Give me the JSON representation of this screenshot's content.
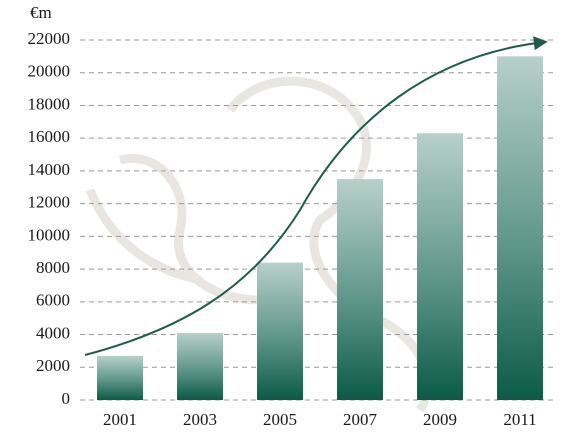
{
  "chart_data": {
    "type": "bar",
    "y_label": "€m",
    "categories": [
      "2001",
      "2003",
      "2005",
      "2007",
      "2009",
      "2011"
    ],
    "values": [
      2700,
      4100,
      8400,
      13500,
      16300,
      21000
    ],
    "color": "#0b5a48",
    "ylim": [
      0,
      22000
    ],
    "yticks": [
      0,
      2000,
      4000,
      6000,
      8000,
      10000,
      12000,
      14000,
      16000,
      18000,
      20000,
      22000
    ],
    "grid": true
  }
}
